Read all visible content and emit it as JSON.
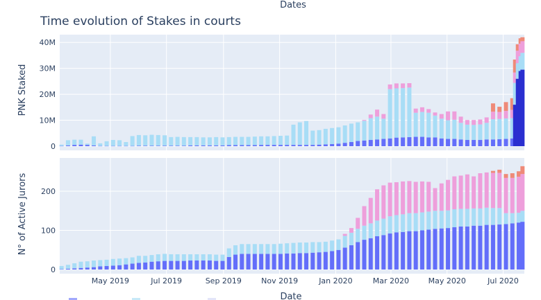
{
  "figure": {
    "title": "Time evolution of Stakes in courts",
    "top_axis_title": "Dates",
    "bottom_axis_title": "Date"
  },
  "legend": {
    "placement": "bottom-left",
    "swatch_colors": [
      "#636efa",
      "#a1dbf3",
      "#d0d4f5"
    ]
  },
  "colors": {
    "plot_bg": "#e5ecf6",
    "grid": "#ffffff",
    "court_general": "#636efa",
    "court_blockchain": "#a8ddf6",
    "court_mid": "#ee9fdb",
    "court_top": "#ef8a78",
    "accent_dark": "#2a2fd0"
  },
  "chart_data": [
    {
      "type": "bar",
      "stacked": true,
      "ylabel": "PNK Staked",
      "yticks": [
        "0",
        "10M",
        "20M",
        "30M",
        "40M"
      ],
      "ylim": [
        0,
        43000000
      ],
      "xlim": [
        "2019-03-07",
        "2020-07-24"
      ],
      "grid": true,
      "series_colors": [
        "#636efa",
        "#a8ddf6",
        "#ee9fdb",
        "#ef8a78"
      ],
      "points": [
        [
          "2019-03-09",
          0.1,
          0.5,
          0,
          0
        ],
        [
          "2019-03-16",
          0.3,
          2.0,
          0,
          0
        ],
        [
          "2019-03-23",
          0.5,
          2.0,
          0,
          0
        ],
        [
          "2019-03-30",
          0.6,
          1.9,
          0,
          0
        ],
        [
          "2019-04-06",
          0.5,
          0.5,
          0,
          0
        ],
        [
          "2019-04-13",
          0.3,
          3.5,
          0,
          0
        ],
        [
          "2019-04-20",
          0.1,
          1.0,
          0,
          0
        ],
        [
          "2019-04-27",
          0.1,
          1.8,
          0,
          0
        ],
        [
          "2019-05-04",
          0.1,
          2.3,
          0,
          0
        ],
        [
          "2019-05-11",
          0.1,
          2.2,
          0,
          0
        ],
        [
          "2019-05-18",
          0.1,
          1.5,
          0,
          0
        ],
        [
          "2019-05-25",
          0.1,
          3.8,
          0,
          0
        ],
        [
          "2019-06-01",
          0.2,
          4.1,
          0,
          0
        ],
        [
          "2019-06-08",
          0.2,
          4.0,
          0,
          0
        ],
        [
          "2019-06-15",
          0.2,
          4.2,
          0,
          0
        ],
        [
          "2019-06-22",
          0.2,
          4.1,
          0,
          0
        ],
        [
          "2019-06-29",
          0.2,
          4.0,
          0,
          0
        ],
        [
          "2019-07-06",
          0.2,
          3.3,
          0,
          0
        ],
        [
          "2019-07-13",
          0.2,
          3.4,
          0,
          0
        ],
        [
          "2019-07-20",
          0.2,
          3.3,
          0,
          0
        ],
        [
          "2019-07-27",
          0.3,
          3.2,
          0,
          0
        ],
        [
          "2019-08-03",
          0.3,
          3.2,
          0,
          0
        ],
        [
          "2019-08-10",
          0.3,
          3.1,
          0,
          0
        ],
        [
          "2019-08-17",
          0.3,
          3.1,
          0,
          0
        ],
        [
          "2019-08-24",
          0.3,
          3.2,
          0,
          0
        ],
        [
          "2019-08-31",
          0.3,
          3.1,
          0,
          0
        ],
        [
          "2019-09-07",
          0.4,
          3.1,
          0,
          0
        ],
        [
          "2019-09-14",
          0.4,
          3.2,
          0,
          0
        ],
        [
          "2019-09-21",
          0.4,
          3.2,
          0,
          0
        ],
        [
          "2019-09-28",
          0.4,
          3.2,
          0,
          0
        ],
        [
          "2019-10-05",
          0.4,
          3.3,
          0,
          0
        ],
        [
          "2019-10-12",
          0.5,
          3.3,
          0,
          0
        ],
        [
          "2019-10-19",
          0.5,
          3.3,
          0,
          0
        ],
        [
          "2019-10-26",
          0.5,
          3.4,
          0,
          0
        ],
        [
          "2019-11-02",
          0.5,
          3.5,
          0,
          0
        ],
        [
          "2019-11-09",
          0.5,
          3.6,
          0,
          0
        ],
        [
          "2019-11-16",
          0.5,
          7.8,
          0,
          0
        ],
        [
          "2019-11-23",
          0.5,
          8.7,
          0,
          0
        ],
        [
          "2019-11-30",
          0.5,
          9.2,
          0,
          0
        ],
        [
          "2019-12-07",
          0.5,
          5.5,
          0,
          0
        ],
        [
          "2019-12-14",
          0.6,
          5.6,
          0,
          0
        ],
        [
          "2019-12-21",
          0.7,
          6.0,
          0,
          0
        ],
        [
          "2019-12-28",
          0.8,
          6.2,
          0,
          0
        ],
        [
          "2020-01-04",
          1.0,
          6.3,
          0,
          0
        ],
        [
          "2020-01-11",
          1.3,
          6.7,
          0,
          0
        ],
        [
          "2020-01-18",
          1.6,
          7.1,
          0,
          0
        ],
        [
          "2020-01-25",
          2.0,
          7.2,
          0,
          0
        ],
        [
          "2020-02-01",
          2.2,
          7.6,
          0.3,
          0
        ],
        [
          "2020-02-08",
          2.4,
          8.4,
          1.4,
          0
        ],
        [
          "2020-02-15",
          2.6,
          8.8,
          2.7,
          0
        ],
        [
          "2020-02-22",
          2.8,
          7.8,
          1.8,
          0
        ],
        [
          "2020-02-29",
          3.0,
          19.0,
          1.8,
          0
        ],
        [
          "2020-03-07",
          3.3,
          19.0,
          1.9,
          0
        ],
        [
          "2020-03-14",
          3.4,
          19.0,
          1.8,
          0
        ],
        [
          "2020-03-21",
          3.5,
          19.1,
          1.7,
          0
        ],
        [
          "2020-03-28",
          3.6,
          9.3,
          1.6,
          0
        ],
        [
          "2020-04-04",
          3.6,
          9.6,
          1.8,
          0
        ],
        [
          "2020-04-11",
          3.4,
          9.5,
          1.4,
          0
        ],
        [
          "2020-04-18",
          3.4,
          8.4,
          1.2,
          0
        ],
        [
          "2020-04-25",
          3.0,
          7.6,
          1.8,
          0
        ],
        [
          "2020-05-02",
          2.8,
          7.2,
          3.4,
          0
        ],
        [
          "2020-05-09",
          2.8,
          7.4,
          3.2,
          0
        ],
        [
          "2020-05-16",
          2.6,
          6.4,
          2.4,
          0
        ],
        [
          "2020-05-23",
          2.4,
          5.9,
          1.8,
          0
        ],
        [
          "2020-05-30",
          2.4,
          5.8,
          1.9,
          0
        ],
        [
          "2020-06-06",
          2.4,
          6.0,
          1.9,
          0
        ],
        [
          "2020-06-13",
          2.6,
          6.4,
          2.1,
          0
        ],
        [
          "2020-06-20",
          2.6,
          7.8,
          2.9,
          3.2
        ],
        [
          "2020-06-27",
          2.7,
          7.8,
          2.7,
          2.0
        ],
        [
          "2020-07-04",
          2.8,
          7.9,
          2.9,
          3.4
        ],
        [
          "2020-07-11",
          3.0,
          7.8,
          3.2,
          4.5
        ],
        [
          "2020-07-14",
          16.0,
          8.4,
          4.0,
          5.0
        ],
        [
          "2020-07-17",
          26.0,
          6.0,
          4.8,
          2.5
        ],
        [
          "2020-07-20",
          29.0,
          5.7,
          4.8,
          2.1
        ],
        [
          "2020-07-22",
          29.5,
          6.5,
          4.5,
          1.5
        ]
      ]
    },
    {
      "type": "bar",
      "stacked": true,
      "ylabel": "N° of Active Jurors",
      "yticks": [
        "0",
        "100",
        "200"
      ],
      "ylim": [
        0,
        285
      ],
      "xlim": [
        "2019-03-07",
        "2020-07-24"
      ],
      "xticks": [
        "May 2019",
        "Jul 2019",
        "Sep 2019",
        "Nov 2019",
        "Jan 2020",
        "Mar 2020",
        "May 2020",
        "Jul 2020"
      ],
      "grid": true,
      "series_colors": [
        "#636efa",
        "#a8ddf6",
        "#ee9fdb",
        "#ef8a78"
      ],
      "points": [
        [
          "2019-03-09",
          1,
          8,
          0,
          0
        ],
        [
          "2019-03-16",
          2,
          10,
          0,
          0
        ],
        [
          "2019-03-23",
          3,
          13,
          0,
          0
        ],
        [
          "2019-03-30",
          4,
          16,
          0,
          0
        ],
        [
          "2019-04-06",
          5,
          16,
          0,
          0
        ],
        [
          "2019-04-13",
          6,
          17,
          0,
          0
        ],
        [
          "2019-04-20",
          8,
          16,
          0,
          0
        ],
        [
          "2019-04-27",
          9,
          16,
          0,
          0
        ],
        [
          "2019-05-04",
          10,
          17,
          0,
          0
        ],
        [
          "2019-05-11",
          11,
          17,
          0,
          0
        ],
        [
          "2019-05-18",
          13,
          16,
          0,
          0
        ],
        [
          "2019-05-25",
          15,
          16,
          0,
          0
        ],
        [
          "2019-06-01",
          17,
          18,
          0,
          0
        ],
        [
          "2019-06-08",
          18,
          17,
          0,
          0
        ],
        [
          "2019-06-15",
          20,
          17,
          0,
          0
        ],
        [
          "2019-06-22",
          21,
          18,
          0,
          0
        ],
        [
          "2019-06-29",
          22,
          18,
          0,
          0
        ],
        [
          "2019-07-06",
          22,
          17,
          0,
          0
        ],
        [
          "2019-07-13",
          22,
          17,
          0,
          0
        ],
        [
          "2019-07-20",
          22,
          17,
          0,
          0
        ],
        [
          "2019-07-27",
          23,
          16,
          0,
          0
        ],
        [
          "2019-08-03",
          23,
          16,
          0,
          0
        ],
        [
          "2019-08-10",
          23,
          16,
          0,
          0
        ],
        [
          "2019-08-17",
          23,
          16,
          0,
          0
        ],
        [
          "2019-08-24",
          22,
          16,
          0,
          0
        ],
        [
          "2019-08-31",
          22,
          16,
          0,
          0
        ],
        [
          "2019-09-07",
          32,
          22,
          0,
          0
        ],
        [
          "2019-09-14",
          38,
          24,
          0,
          0
        ],
        [
          "2019-09-21",
          40,
          25,
          0,
          0
        ],
        [
          "2019-09-28",
          40,
          25,
          0,
          0
        ],
        [
          "2019-10-05",
          40,
          25,
          0,
          0
        ],
        [
          "2019-10-12",
          40,
          25,
          0,
          0
        ],
        [
          "2019-10-19",
          40,
          25,
          0,
          0
        ],
        [
          "2019-10-26",
          40,
          25,
          0,
          0
        ],
        [
          "2019-11-02",
          40,
          26,
          0,
          0
        ],
        [
          "2019-11-09",
          41,
          26,
          0,
          0
        ],
        [
          "2019-11-16",
          41,
          27,
          0,
          0
        ],
        [
          "2019-11-23",
          42,
          27,
          0,
          0
        ],
        [
          "2019-11-30",
          42,
          27,
          0,
          0
        ],
        [
          "2019-12-07",
          43,
          27,
          0,
          0
        ],
        [
          "2019-12-14",
          44,
          26,
          0,
          0
        ],
        [
          "2019-12-21",
          45,
          26,
          0,
          0
        ],
        [
          "2019-12-28",
          47,
          27,
          0,
          0
        ],
        [
          "2020-01-04",
          50,
          27,
          0,
          0
        ],
        [
          "2020-01-11",
          56,
          30,
          5,
          0
        ],
        [
          "2020-01-18",
          62,
          32,
          12,
          0
        ],
        [
          "2020-01-25",
          70,
          34,
          28,
          0
        ],
        [
          "2020-02-01",
          76,
          36,
          50,
          0
        ],
        [
          "2020-02-08",
          80,
          38,
          65,
          0
        ],
        [
          "2020-02-15",
          85,
          40,
          80,
          0
        ],
        [
          "2020-02-22",
          88,
          42,
          85,
          0
        ],
        [
          "2020-02-29",
          92,
          44,
          86,
          0
        ],
        [
          "2020-03-07",
          95,
          44,
          84,
          0
        ],
        [
          "2020-03-14",
          96,
          45,
          84,
          0
        ],
        [
          "2020-03-21",
          98,
          46,
          82,
          0
        ],
        [
          "2020-03-28",
          98,
          46,
          80,
          0
        ],
        [
          "2020-04-04",
          100,
          46,
          79,
          0
        ],
        [
          "2020-04-11",
          102,
          46,
          76,
          0
        ],
        [
          "2020-04-18",
          104,
          46,
          58,
          0
        ],
        [
          "2020-04-25",
          105,
          45,
          70,
          0
        ],
        [
          "2020-05-02",
          106,
          45,
          78,
          0
        ],
        [
          "2020-05-09",
          108,
          46,
          84,
          0
        ],
        [
          "2020-05-16",
          110,
          45,
          85,
          0
        ],
        [
          "2020-05-23",
          110,
          45,
          88,
          0
        ],
        [
          "2020-05-30",
          112,
          44,
          82,
          0
        ],
        [
          "2020-06-06",
          112,
          44,
          90,
          0
        ],
        [
          "2020-06-13",
          114,
          44,
          90,
          0
        ],
        [
          "2020-06-20",
          114,
          43,
          90,
          5
        ],
        [
          "2020-06-27",
          115,
          42,
          90,
          8
        ],
        [
          "2020-07-04",
          116,
          28,
          90,
          10
        ],
        [
          "2020-07-11",
          118,
          26,
          90,
          12
        ],
        [
          "2020-07-18",
          120,
          25,
          92,
          14
        ],
        [
          "2020-07-22",
          122,
          28,
          94,
          20
        ]
      ]
    }
  ]
}
